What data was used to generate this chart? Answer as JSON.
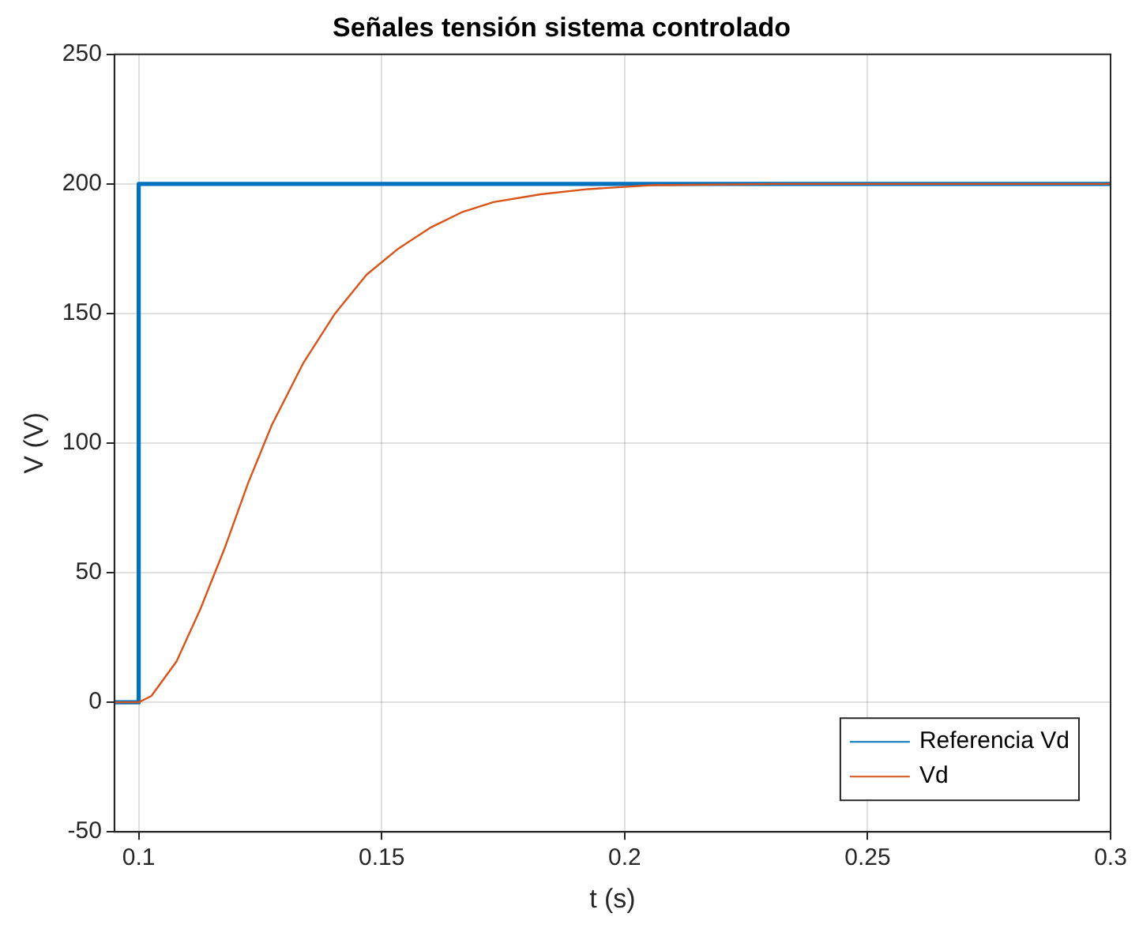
{
  "chart_data": {
    "type": "line",
    "title": "Señales tensión sistema controlado",
    "xlabel": "t (s)",
    "ylabel": "V (V)",
    "xlim": [
      0.095,
      0.3
    ],
    "xticks": [
      0.1,
      0.15,
      0.2,
      0.25,
      0.3
    ],
    "ylim": [
      -50,
      250
    ],
    "yticks": [
      -50,
      0,
      50,
      100,
      150,
      200,
      250
    ],
    "grid": true,
    "legend": "bottom right",
    "line_style": "solid",
    "marker": "none",
    "series": [
      {
        "name": "Referencia Vd",
        "color": "#0072bd",
        "x": [
          0.095,
          0.1,
          0.1,
          0.3
        ],
        "values": [
          0,
          0,
          200,
          200
        ]
      },
      {
        "name": "Vd",
        "color": "#d95319",
        "x": [
          0.095,
          0.1,
          0.1026,
          0.1078,
          0.1127,
          0.1176,
          0.1225,
          0.1274,
          0.1339,
          0.1404,
          0.1469,
          0.1534,
          0.1599,
          0.1664,
          0.173,
          0.1827,
          0.1925,
          0.2055,
          0.2316,
          0.3
        ],
        "values": [
          0,
          0,
          2.4,
          15.8,
          36,
          59,
          84.5,
          107,
          131,
          150,
          165,
          175,
          183,
          189,
          193,
          196,
          198,
          199.5,
          200,
          200
        ]
      }
    ]
  }
}
